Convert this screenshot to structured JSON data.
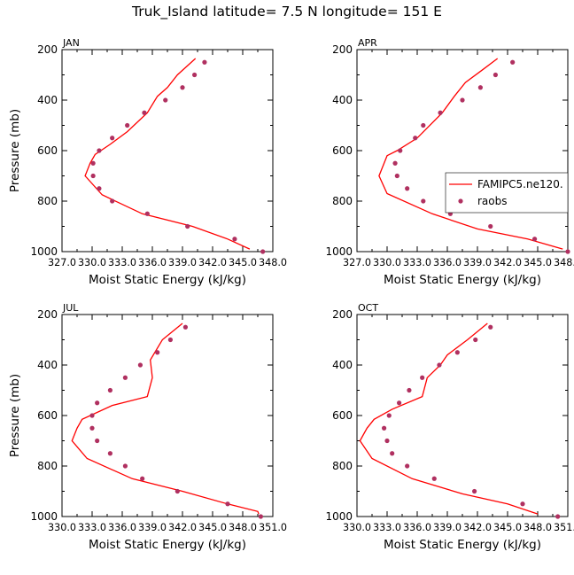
{
  "figure_title": "Truk_Island  latitude= 7.5 N longitude= 151 E",
  "colors": {
    "model": "#ff0000",
    "obs": "#b03060"
  },
  "chart_data": [
    {
      "type": "line",
      "panel": "JAN",
      "title": "JAN",
      "xlabel": "Moist Static Energy (kJ/kg)",
      "ylabel": "Pressure (mb)",
      "xlim": [
        327.0,
        348.0
      ],
      "ylim": [
        1000,
        200
      ],
      "x_ticks": [
        327.0,
        330.0,
        333.0,
        336.0,
        339.0,
        342.0,
        345.0,
        348.0
      ],
      "x_tick_labels": [
        "327.0",
        "330.0",
        "333.0",
        "336.0",
        "339.0",
        "342.0",
        "345.0",
        "348.0"
      ],
      "y_ticks": [
        200,
        400,
        600,
        800,
        1000
      ],
      "y_tick_labels": [
        "200",
        "400",
        "600",
        "800",
        "1000"
      ],
      "show_ylabel": true,
      "legend": null,
      "series": [
        {
          "kind": "line",
          "values": [
            {
              "x": 340.3,
              "y": 235
            },
            {
              "x": 338.5,
              "y": 300
            },
            {
              "x": 337.5,
              "y": 350
            },
            {
              "x": 336.5,
              "y": 385
            },
            {
              "x": 335.5,
              "y": 450
            },
            {
              "x": 333.5,
              "y": 525
            },
            {
              "x": 331.8,
              "y": 575
            },
            {
              "x": 330.3,
              "y": 615
            },
            {
              "x": 329.8,
              "y": 650
            },
            {
              "x": 329.3,
              "y": 700
            },
            {
              "x": 331.0,
              "y": 775
            },
            {
              "x": 335.0,
              "y": 850
            },
            {
              "x": 340.0,
              "y": 900
            },
            {
              "x": 343.5,
              "y": 950
            },
            {
              "x": 345.7,
              "y": 990
            }
          ]
        },
        {
          "kind": "points",
          "values": [
            {
              "x": 341.2,
              "y": 250
            },
            {
              "x": 340.2,
              "y": 300
            },
            {
              "x": 339.0,
              "y": 350
            },
            {
              "x": 337.3,
              "y": 400
            },
            {
              "x": 335.2,
              "y": 450
            },
            {
              "x": 333.5,
              "y": 500
            },
            {
              "x": 332.0,
              "y": 550
            },
            {
              "x": 330.7,
              "y": 600
            },
            {
              "x": 330.1,
              "y": 650
            },
            {
              "x": 330.1,
              "y": 700
            },
            {
              "x": 330.7,
              "y": 750
            },
            {
              "x": 332.0,
              "y": 800
            },
            {
              "x": 335.5,
              "y": 850
            },
            {
              "x": 339.5,
              "y": 900
            },
            {
              "x": 344.2,
              "y": 950
            },
            {
              "x": 347.0,
              "y": 1000
            }
          ]
        }
      ]
    },
    {
      "type": "line",
      "panel": "APR",
      "title": "APR",
      "xlabel": "Moist Static Energy (kJ/kg)",
      "ylabel": "",
      "xlim": [
        327.0,
        348.0
      ],
      "ylim": [
        1000,
        200
      ],
      "x_ticks": [
        327.0,
        330.0,
        333.0,
        336.0,
        339.0,
        342.0,
        345.0,
        348.0
      ],
      "x_tick_labels": [
        "327.0",
        "330.0",
        "333.0",
        "336.0",
        "339.0",
        "342.0",
        "345.0",
        "348.0"
      ],
      "y_ticks": [
        200,
        400,
        600,
        800,
        1000
      ],
      "y_tick_labels": [
        "200",
        "400",
        "600",
        "800",
        "1000"
      ],
      "show_ylabel": false,
      "legend": {
        "placement": "right",
        "items": [
          "FAMIPC5.ne120.",
          "raobs"
        ]
      },
      "series": [
        {
          "name": "FAMIPC5.ne120.",
          "kind": "line",
          "values": [
            {
              "x": 341.0,
              "y": 235
            },
            {
              "x": 339.5,
              "y": 280
            },
            {
              "x": 337.8,
              "y": 330
            },
            {
              "x": 336.7,
              "y": 385
            },
            {
              "x": 335.5,
              "y": 450
            },
            {
              "x": 333.0,
              "y": 550
            },
            {
              "x": 331.0,
              "y": 600
            },
            {
              "x": 330.0,
              "y": 620
            },
            {
              "x": 329.2,
              "y": 700
            },
            {
              "x": 330.0,
              "y": 770
            },
            {
              "x": 334.5,
              "y": 850
            },
            {
              "x": 339.0,
              "y": 910
            },
            {
              "x": 344.0,
              "y": 950
            },
            {
              "x": 347.5,
              "y": 990
            }
          ]
        },
        {
          "name": "raobs",
          "kind": "points",
          "values": [
            {
              "x": 342.5,
              "y": 250
            },
            {
              "x": 340.8,
              "y": 300
            },
            {
              "x": 339.3,
              "y": 350
            },
            {
              "x": 337.5,
              "y": 400
            },
            {
              "x": 335.3,
              "y": 450
            },
            {
              "x": 333.6,
              "y": 500
            },
            {
              "x": 332.8,
              "y": 550
            },
            {
              "x": 331.3,
              "y": 600
            },
            {
              "x": 330.8,
              "y": 650
            },
            {
              "x": 331.0,
              "y": 700
            },
            {
              "x": 332.0,
              "y": 750
            },
            {
              "x": 333.6,
              "y": 800
            },
            {
              "x": 336.3,
              "y": 850
            },
            {
              "x": 340.3,
              "y": 900
            },
            {
              "x": 344.7,
              "y": 950
            },
            {
              "x": 348.0,
              "y": 1000
            }
          ]
        }
      ]
    },
    {
      "type": "line",
      "panel": "JUL",
      "title": "JUL",
      "xlabel": "Moist Static Energy (kJ/kg)",
      "ylabel": "Pressure (mb)",
      "xlim": [
        330.0,
        351.0
      ],
      "ylim": [
        1000,
        200
      ],
      "x_ticks": [
        330.0,
        333.0,
        336.0,
        339.0,
        342.0,
        345.0,
        348.0,
        351.0
      ],
      "x_tick_labels": [
        "330.0",
        "333.0",
        "336.0",
        "339.0",
        "342.0",
        "345.0",
        "348.0",
        "351.0"
      ],
      "y_ticks": [
        200,
        400,
        600,
        800,
        1000
      ],
      "y_tick_labels": [
        "200",
        "400",
        "600",
        "800",
        "1000"
      ],
      "show_ylabel": true,
      "legend": null,
      "series": [
        {
          "kind": "line",
          "values": [
            {
              "x": 342.0,
              "y": 235
            },
            {
              "x": 340.0,
              "y": 300
            },
            {
              "x": 338.8,
              "y": 380
            },
            {
              "x": 339.0,
              "y": 450
            },
            {
              "x": 338.5,
              "y": 525
            },
            {
              "x": 335.0,
              "y": 560
            },
            {
              "x": 332.0,
              "y": 615
            },
            {
              "x": 331.5,
              "y": 650
            },
            {
              "x": 331.0,
              "y": 700
            },
            {
              "x": 332.5,
              "y": 770
            },
            {
              "x": 337.0,
              "y": 850
            },
            {
              "x": 342.0,
              "y": 900
            },
            {
              "x": 346.5,
              "y": 950
            },
            {
              "x": 349.5,
              "y": 980
            },
            {
              "x": 349.6,
              "y": 990
            }
          ]
        },
        {
          "kind": "points",
          "values": [
            {
              "x": 342.3,
              "y": 250
            },
            {
              "x": 340.8,
              "y": 300
            },
            {
              "x": 339.5,
              "y": 350
            },
            {
              "x": 337.8,
              "y": 400
            },
            {
              "x": 336.3,
              "y": 450
            },
            {
              "x": 334.8,
              "y": 500
            },
            {
              "x": 333.5,
              "y": 550
            },
            {
              "x": 333.0,
              "y": 600
            },
            {
              "x": 333.0,
              "y": 650
            },
            {
              "x": 333.5,
              "y": 700
            },
            {
              "x": 334.8,
              "y": 750
            },
            {
              "x": 336.3,
              "y": 800
            },
            {
              "x": 338.0,
              "y": 850
            },
            {
              "x": 341.5,
              "y": 900
            },
            {
              "x": 346.5,
              "y": 950
            },
            {
              "x": 349.8,
              "y": 1000
            }
          ]
        }
      ]
    },
    {
      "type": "line",
      "panel": "OCT",
      "title": "OCT",
      "xlabel": "Moist Static Energy (kJ/kg)",
      "ylabel": "",
      "xlim": [
        330.0,
        351.0
      ],
      "ylim": [
        1000,
        200
      ],
      "x_ticks": [
        330.0,
        333.0,
        336.0,
        339.0,
        342.0,
        345.0,
        348.0,
        351.0
      ],
      "x_tick_labels": [
        "330.0",
        "333.0",
        "336.0",
        "339.0",
        "342.0",
        "345.0",
        "348.0",
        "351.0"
      ],
      "y_ticks": [
        200,
        400,
        600,
        800,
        1000
      ],
      "y_tick_labels": [
        "200",
        "400",
        "600",
        "800",
        "1000"
      ],
      "show_ylabel": false,
      "legend": null,
      "series": [
        {
          "kind": "line",
          "values": [
            {
              "x": 343.0,
              "y": 235
            },
            {
              "x": 341.0,
              "y": 300
            },
            {
              "x": 339.0,
              "y": 360
            },
            {
              "x": 338.3,
              "y": 400
            },
            {
              "x": 337.0,
              "y": 450
            },
            {
              "x": 336.5,
              "y": 525
            },
            {
              "x": 333.5,
              "y": 575
            },
            {
              "x": 331.7,
              "y": 615
            },
            {
              "x": 331.0,
              "y": 650
            },
            {
              "x": 330.3,
              "y": 700
            },
            {
              "x": 331.5,
              "y": 770
            },
            {
              "x": 335.5,
              "y": 850
            },
            {
              "x": 340.5,
              "y": 910
            },
            {
              "x": 345.0,
              "y": 950
            },
            {
              "x": 348.0,
              "y": 990
            }
          ]
        },
        {
          "kind": "points",
          "values": [
            {
              "x": 343.3,
              "y": 250
            },
            {
              "x": 341.8,
              "y": 300
            },
            {
              "x": 340.0,
              "y": 350
            },
            {
              "x": 338.2,
              "y": 400
            },
            {
              "x": 336.5,
              "y": 450
            },
            {
              "x": 335.2,
              "y": 500
            },
            {
              "x": 334.2,
              "y": 550
            },
            {
              "x": 333.2,
              "y": 600
            },
            {
              "x": 332.7,
              "y": 650
            },
            {
              "x": 333.0,
              "y": 700
            },
            {
              "x": 333.5,
              "y": 750
            },
            {
              "x": 335.0,
              "y": 800
            },
            {
              "x": 337.7,
              "y": 850
            },
            {
              "x": 341.7,
              "y": 900
            },
            {
              "x": 346.5,
              "y": 950
            },
            {
              "x": 350.0,
              "y": 1000
            }
          ]
        }
      ]
    }
  ]
}
